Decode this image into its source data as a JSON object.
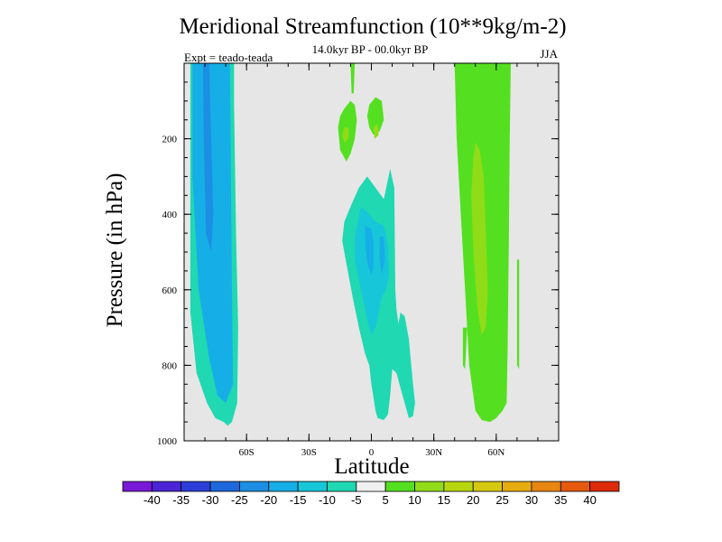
{
  "chart_data": {
    "type": "contour",
    "title": "Meridional Streamfunction (10**9kg/m-2)",
    "subtitle": "14.0kyr BP - 00.0kyr BP",
    "experiment": "Expt = teado-teada",
    "season": "JJA",
    "xlabel": "Latitude",
    "ylabel": "Pressure (in hPa)",
    "xlim": [
      -90,
      90
    ],
    "ylim": [
      1000,
      0
    ],
    "x_ticks": [
      {
        "value": -60,
        "label": "60S"
      },
      {
        "value": -30,
        "label": "30S"
      },
      {
        "value": 0,
        "label": "0"
      },
      {
        "value": 30,
        "label": "30N"
      },
      {
        "value": 60,
        "label": "60N"
      }
    ],
    "y_ticks": [
      {
        "value": 200,
        "label": "200"
      },
      {
        "value": 400,
        "label": "400"
      },
      {
        "value": 600,
        "label": "600"
      },
      {
        "value": 800,
        "label": "800"
      },
      {
        "value": 1000,
        "label": "1000"
      }
    ],
    "background_color": "#e6e6e6",
    "levels": [
      "-40",
      "-35",
      "-30",
      "-25",
      "-20",
      "-15",
      "-10",
      "-5",
      "5",
      "10",
      "15",
      "20",
      "25",
      "30",
      "35",
      "40"
    ],
    "colorbar_colors": [
      "#7a18d8",
      "#4a24d6",
      "#2c3ed8",
      "#1d68dc",
      "#1c8ee3",
      "#16aee6",
      "#17c6d8",
      "#20d8b2",
      "#f0f0f0",
      "#54e020",
      "#90dc18",
      "#b8d610",
      "#d6c810",
      "#e6ac10",
      "#e88612",
      "#e65a0e",
      "#dc2a0a"
    ],
    "regions": [
      {
        "name": "sh-cell-outer",
        "color": "#20d8b2",
        "points": [
          [
            -87,
            0
          ],
          [
            -66,
            0
          ],
          [
            -66,
            100
          ],
          [
            -65,
            460
          ],
          [
            -64,
            700
          ],
          [
            -64.5,
            900
          ],
          [
            -67,
            950
          ],
          [
            -69,
            960
          ],
          [
            -71,
            950
          ],
          [
            -75,
            940
          ],
          [
            -79,
            900
          ],
          [
            -84,
            820
          ],
          [
            -87,
            660
          ]
        ]
      },
      {
        "name": "sh-cell-mid",
        "color": "#16aee6",
        "points": [
          [
            -86,
            0
          ],
          [
            -68,
            0
          ],
          [
            -67.5,
            300
          ],
          [
            -67,
            600
          ],
          [
            -66.5,
            850
          ],
          [
            -70,
            900
          ],
          [
            -74,
            880
          ],
          [
            -78,
            780
          ],
          [
            -83,
            600
          ],
          [
            -86,
            300
          ]
        ]
      },
      {
        "name": "sh-cell-core",
        "color": "#1c8ee3",
        "points": [
          [
            -81,
            0
          ],
          [
            -78,
            0
          ],
          [
            -77,
            200
          ],
          [
            -76,
            400
          ],
          [
            -77,
            500
          ],
          [
            -79.5,
            450
          ],
          [
            -80.5,
            200
          ]
        ]
      },
      {
        "name": "eq-cell-outer",
        "color": "#20d8b2",
        "points": [
          [
            -2,
            300
          ],
          [
            2,
            330
          ],
          [
            6,
            360
          ],
          [
            9,
            280
          ],
          [
            11,
            330
          ],
          [
            11.5,
            600
          ],
          [
            12,
            650
          ],
          [
            13,
            690
          ],
          [
            14,
            660
          ],
          [
            16,
            670
          ],
          [
            18,
            730
          ],
          [
            20,
            850
          ],
          [
            21,
            900
          ],
          [
            20,
            935
          ],
          [
            18,
            940
          ],
          [
            15,
            880
          ],
          [
            12,
            820
          ],
          [
            10,
            810
          ],
          [
            9,
            880
          ],
          [
            8,
            930
          ],
          [
            6,
            945
          ],
          [
            3,
            940
          ],
          [
            2,
            920
          ],
          [
            0,
            850
          ],
          [
            -1,
            800
          ],
          [
            -3,
            770
          ],
          [
            -6,
            700
          ],
          [
            -9,
            620
          ],
          [
            -12,
            530
          ],
          [
            -14,
            470
          ],
          [
            -13,
            420
          ],
          [
            -10,
            380
          ],
          [
            -6,
            330
          ]
        ]
      },
      {
        "name": "eq-cell-mid",
        "color": "#17c6d8",
        "points": [
          [
            -5,
            380
          ],
          [
            -1,
            400
          ],
          [
            2,
            420
          ],
          [
            6,
            430
          ],
          [
            8,
            480
          ],
          [
            8.5,
            560
          ],
          [
            7,
            600
          ],
          [
            5,
            620
          ],
          [
            2,
            700
          ],
          [
            0,
            720
          ],
          [
            -2,
            680
          ],
          [
            -5,
            600
          ],
          [
            -8,
            520
          ],
          [
            -8,
            460
          ]
        ]
      },
      {
        "name": "eq-cell-core",
        "color": "#16aee6",
        "points": [
          [
            -3,
            430
          ],
          [
            0,
            440
          ],
          [
            1,
            470
          ],
          [
            1,
            540
          ],
          [
            0,
            560
          ],
          [
            -2,
            530
          ],
          [
            -3,
            480
          ]
        ]
      },
      {
        "name": "eq-cell-core2",
        "color": "#16aee6",
        "points": [
          [
            4,
            460
          ],
          [
            6,
            460
          ],
          [
            6.5,
            520
          ],
          [
            5,
            560
          ],
          [
            4,
            520
          ]
        ]
      },
      {
        "name": "upper-pos-cell",
        "color": "#54e020",
        "points": [
          [
            -13,
            120
          ],
          [
            -10,
            100
          ],
          [
            -8,
            110
          ],
          [
            -7,
            150
          ],
          [
            -8,
            200
          ],
          [
            -10,
            240
          ],
          [
            -12,
            260
          ],
          [
            -15,
            230
          ],
          [
            -16,
            170
          ],
          [
            -15,
            140
          ]
        ]
      },
      {
        "name": "upper-pos-cell-core",
        "color": "#90dc18",
        "points": [
          [
            -13,
            170
          ],
          [
            -11,
            170
          ],
          [
            -11,
            200
          ],
          [
            -13,
            210
          ],
          [
            -14,
            190
          ]
        ]
      },
      {
        "name": "upper-pos-cell-2",
        "color": "#54e020",
        "points": [
          [
            -1,
            110
          ],
          [
            2,
            90
          ],
          [
            5,
            100
          ],
          [
            6,
            150
          ],
          [
            4,
            180
          ],
          [
            1,
            190
          ],
          [
            -1,
            170
          ],
          [
            -2,
            140
          ]
        ]
      },
      {
        "name": "upper-pos-cell-2-core",
        "color": "#90dc18",
        "points": [
          [
            1,
            170
          ],
          [
            3,
            160
          ],
          [
            3.5,
            190
          ],
          [
            1.5,
            200
          ]
        ]
      },
      {
        "name": "top-pos-spike",
        "color": "#54e020",
        "points": [
          [
            -10,
            0
          ],
          [
            -8,
            0
          ],
          [
            -8.5,
            80
          ],
          [
            -9.5,
            80
          ]
        ]
      },
      {
        "name": "nh-cell-outer",
        "color": "#54e020",
        "points": [
          [
            40,
            0
          ],
          [
            67,
            0
          ],
          [
            66.5,
            200
          ],
          [
            66,
            500
          ],
          [
            65.5,
            750
          ],
          [
            65,
            900
          ],
          [
            63,
            920
          ],
          [
            60,
            940
          ],
          [
            57,
            950
          ],
          [
            53,
            945
          ],
          [
            50,
            920
          ],
          [
            47,
            800
          ],
          [
            45,
            600
          ],
          [
            43,
            400
          ],
          [
            41,
            200
          ]
        ]
      },
      {
        "name": "nh-cell-lighter",
        "color": "#90dc18",
        "points": [
          [
            50,
            210
          ],
          [
            52,
            230
          ],
          [
            54,
            300
          ],
          [
            55,
            450
          ],
          [
            56,
            600
          ],
          [
            55,
            700
          ],
          [
            53,
            720
          ],
          [
            51,
            650
          ],
          [
            49,
            500
          ],
          [
            48,
            350
          ],
          [
            49,
            250
          ]
        ]
      },
      {
        "name": "nh-high-spike",
        "color": "#54e020",
        "points": [
          [
            70,
            520
          ],
          [
            71,
            520
          ],
          [
            71,
            810
          ],
          [
            70,
            800
          ]
        ]
      },
      {
        "name": "nh-left-tail",
        "color": "#54e020",
        "points": [
          [
            44,
            700
          ],
          [
            46,
            700
          ],
          [
            45,
            810
          ],
          [
            44,
            800
          ]
        ]
      }
    ]
  }
}
